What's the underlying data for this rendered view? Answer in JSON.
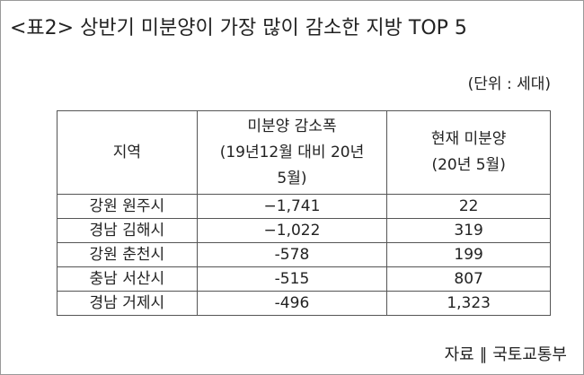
{
  "header": {
    "title": "<표2> 상반기 미분양이 가장 많이 감소한 지방 TOP 5",
    "unit": "(단위 : 세대)"
  },
  "table": {
    "columns": [
      [
        "지역"
      ],
      [
        "미분양 감소폭",
        "(19년12월 대비 20년",
        "5월)"
      ],
      [
        "현재 미분양",
        "(20년 5월)"
      ]
    ],
    "rows": [
      [
        "강원 원주시",
        "−1,741",
        "22"
      ],
      [
        "경남 김해시",
        "−1,022",
        "319"
      ],
      [
        "강원 춘천시",
        "-578",
        "199"
      ],
      [
        "충남 서산시",
        "-515",
        "807"
      ],
      [
        "경남 거제시",
        "-496",
        "1,323"
      ]
    ]
  },
  "footer": {
    "source": "자료 ∥ 국토교통부"
  }
}
